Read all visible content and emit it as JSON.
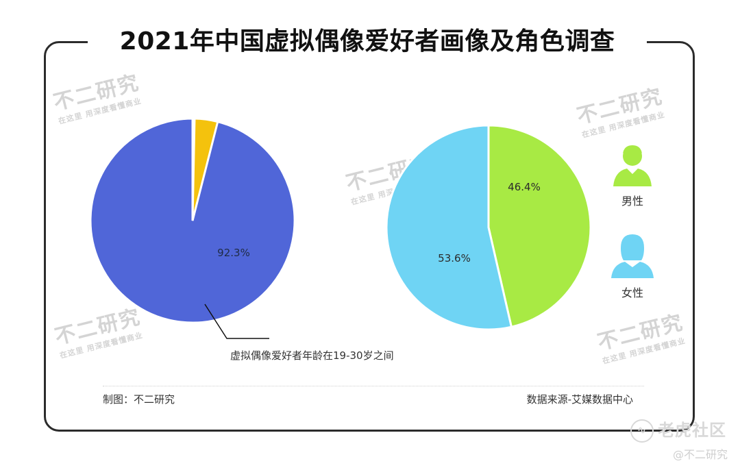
{
  "title": "2021年中国虚拟偶像爱好者画像及角色调查",
  "watermark": {
    "brand": "不二研究",
    "slogan": "在这里 用深度看懂商业"
  },
  "chart_data": [
    {
      "type": "pie",
      "slices": [
        {
          "name": "",
          "value": 92.3,
          "label": "92.3%",
          "color": "#5066d8"
        },
        {
          "name": "",
          "value": 3.5,
          "label": "",
          "color": "#f4c20d"
        }
      ],
      "annotation": "虚拟偶像爱好者年龄在19-30岁之间"
    },
    {
      "type": "pie",
      "slices": [
        {
          "name": "男性",
          "value": 46.4,
          "label": "46.4%",
          "color": "#a8ea44"
        },
        {
          "name": "女性",
          "value": 53.6,
          "label": "53.6%",
          "color": "#6fd4f4"
        }
      ]
    }
  ],
  "legend": {
    "male_label": "男性",
    "female_label": "女性",
    "male_icon": "male-person-icon",
    "female_icon": "female-person-icon",
    "male_color": "#a8ea44",
    "female_color": "#6fd4f4"
  },
  "footer": {
    "made_by": "制图：不二研究",
    "source": "数据来源-艾媒数据中心"
  },
  "corner": {
    "site": "老虎社区",
    "handle": "@不二研究"
  }
}
